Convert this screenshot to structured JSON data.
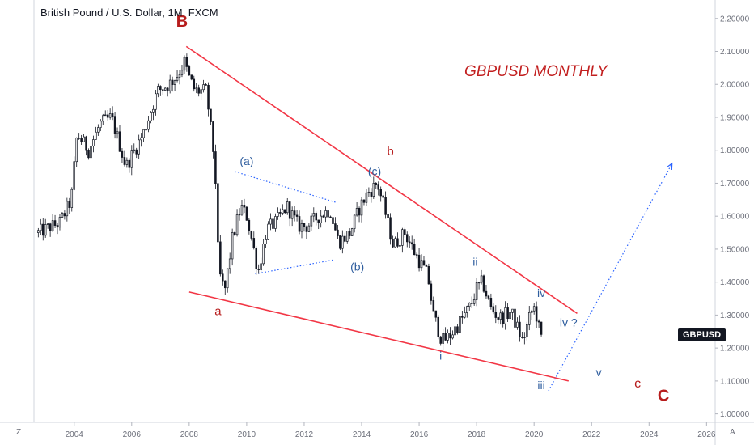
{
  "header": {
    "symbol_title": "British Pound / U.S. Dollar, 1M, FXCM",
    "chart_title": "GBPUSD MONTHLY"
  },
  "price_tag": "GBPUSD",
  "corner_left": "Z",
  "corner_right": "A",
  "colors": {
    "trendline": "#f23645",
    "wave_red": "#b71c1c",
    "wave_blue": "#2e5d9e",
    "triangle_dotted": "#2962ff",
    "projection": "#2962ff",
    "candle": "#131722"
  },
  "chart_data": {
    "type": "candlestick",
    "title": "GBPUSD MONTHLY",
    "xlabel": "",
    "ylabel": "",
    "xlim": [
      2002.6,
      2026.3
    ],
    "ylim": [
      0.9745,
      2.2559
    ],
    "x_ticks": [
      "2004",
      "2006",
      "2008",
      "2010",
      "2012",
      "2014",
      "2016",
      "2018",
      "2020",
      "2022",
      "2024",
      "2026"
    ],
    "y_ticks": [
      "1.00000",
      "1.10000",
      "1.20000",
      "1.30000",
      "1.40000",
      "1.50000",
      "1.60000",
      "1.70000",
      "1.80000",
      "1.90000",
      "2.00000",
      "2.10000",
      "2.20000"
    ],
    "close_path": [
      [
        2002.75,
        1.55
      ],
      [
        2003.5,
        1.58
      ],
      [
        2003.9,
        1.65
      ],
      [
        2004.1,
        1.85
      ],
      [
        2004.5,
        1.8
      ],
      [
        2004.9,
        1.88
      ],
      [
        2005.3,
        1.9
      ],
      [
        2005.8,
        1.75
      ],
      [
        2006.4,
        1.85
      ],
      [
        2006.9,
        1.98
      ],
      [
        2007.3,
        2.0
      ],
      [
        2007.6,
        2.03
      ],
      [
        2007.85,
        2.07
      ],
      [
        2007.95,
        2.03
      ],
      [
        2008.2,
        1.98
      ],
      [
        2008.6,
        1.98
      ],
      [
        2008.9,
        1.75
      ],
      [
        2009.0,
        1.5
      ],
      [
        2009.1,
        1.4
      ],
      [
        2009.25,
        1.38
      ],
      [
        2009.5,
        1.53
      ],
      [
        2009.8,
        1.63
      ],
      [
        2010.0,
        1.6
      ],
      [
        2010.2,
        1.52
      ],
      [
        2010.4,
        1.43
      ],
      [
        2010.7,
        1.56
      ],
      [
        2011.0,
        1.58
      ],
      [
        2011.4,
        1.63
      ],
      [
        2011.8,
        1.57
      ],
      [
        2012.1,
        1.57
      ],
      [
        2012.5,
        1.6
      ],
      [
        2012.9,
        1.62
      ],
      [
        2013.2,
        1.52
      ],
      [
        2013.6,
        1.55
      ],
      [
        2013.9,
        1.62
      ],
      [
        2014.2,
        1.67
      ],
      [
        2014.55,
        1.7
      ],
      [
        2014.8,
        1.62
      ],
      [
        2015.1,
        1.51
      ],
      [
        2015.5,
        1.55
      ],
      [
        2015.9,
        1.48
      ],
      [
        2016.3,
        1.42
      ],
      [
        2016.5,
        1.3
      ],
      [
        2016.8,
        1.22
      ],
      [
        2017.1,
        1.24
      ],
      [
        2017.5,
        1.29
      ],
      [
        2017.8,
        1.33
      ],
      [
        2018.0,
        1.38
      ],
      [
        2018.2,
        1.4
      ],
      [
        2018.5,
        1.32
      ],
      [
        2018.8,
        1.29
      ],
      [
        2019.2,
        1.31
      ],
      [
        2019.6,
        1.22
      ],
      [
        2019.9,
        1.31
      ],
      [
        2020.0,
        1.32
      ],
      [
        2020.15,
        1.28
      ],
      [
        2020.2,
        1.22
      ],
      [
        2020.3,
        1.24
      ]
    ],
    "candle_params": {
      "spacing_months": 1,
      "volatility": 0.05
    },
    "trendlines": [
      {
        "name": "upper",
        "from": [
          2007.9,
          2.115
        ],
        "to": [
          2021.5,
          1.305
        ]
      },
      {
        "name": "lower",
        "from": [
          2008.0,
          1.37
        ],
        "to": [
          2021.2,
          1.1
        ]
      }
    ],
    "triangle": [
      {
        "from": [
          2009.6,
          1.735
        ],
        "to": [
          2013.1,
          1.642
        ]
      },
      {
        "from": [
          2010.3,
          1.425
        ],
        "to": [
          2013.0,
          1.467
        ]
      }
    ],
    "projection": {
      "from": [
        2020.5,
        1.07
      ],
      "to": [
        2024.8,
        1.76
      ]
    },
    "annotations": [
      {
        "text": "B",
        "x": 2007.75,
        "y": 2.175,
        "color": "red",
        "size": 20,
        "weight": "bold"
      },
      {
        "text": "a",
        "x": 2009.0,
        "y": 1.3,
        "color": "red",
        "size": 15,
        "weight": "normal"
      },
      {
        "text": "b",
        "x": 2015.0,
        "y": 1.785,
        "color": "red",
        "size": 15,
        "weight": "normal"
      },
      {
        "text": "(a)",
        "x": 2010.0,
        "y": 1.755,
        "color": "blue",
        "size": 14,
        "weight": "normal"
      },
      {
        "text": "(b)",
        "x": 2013.85,
        "y": 1.435,
        "color": "blue",
        "size": 14,
        "weight": "normal"
      },
      {
        "text": "(c)",
        "x": 2014.45,
        "y": 1.725,
        "color": "blue",
        "size": 14,
        "weight": "normal"
      },
      {
        "text": "i",
        "x": 2016.75,
        "y": 1.165,
        "color": "blue",
        "size": 14,
        "weight": "normal"
      },
      {
        "text": "ii",
        "x": 2017.95,
        "y": 1.45,
        "color": "blue",
        "size": 14,
        "weight": "normal"
      },
      {
        "text": "iii",
        "x": 2020.25,
        "y": 1.075,
        "color": "blue",
        "size": 14,
        "weight": "normal"
      },
      {
        "text": "iv",
        "x": 2020.25,
        "y": 1.355,
        "color": "blue",
        "size": 14,
        "weight": "normal"
      },
      {
        "text": "iv ?",
        "x": 2021.2,
        "y": 1.265,
        "color": "blue",
        "size": 14,
        "weight": "normal"
      },
      {
        "text": "v",
        "x": 2022.25,
        "y": 1.115,
        "color": "blue",
        "size": 14,
        "weight": "normal"
      },
      {
        "text": "c",
        "x": 2023.6,
        "y": 1.08,
        "color": "red",
        "size": 16,
        "weight": "normal"
      },
      {
        "text": "C",
        "x": 2024.5,
        "y": 1.04,
        "color": "red",
        "size": 20,
        "weight": "bold"
      }
    ]
  }
}
